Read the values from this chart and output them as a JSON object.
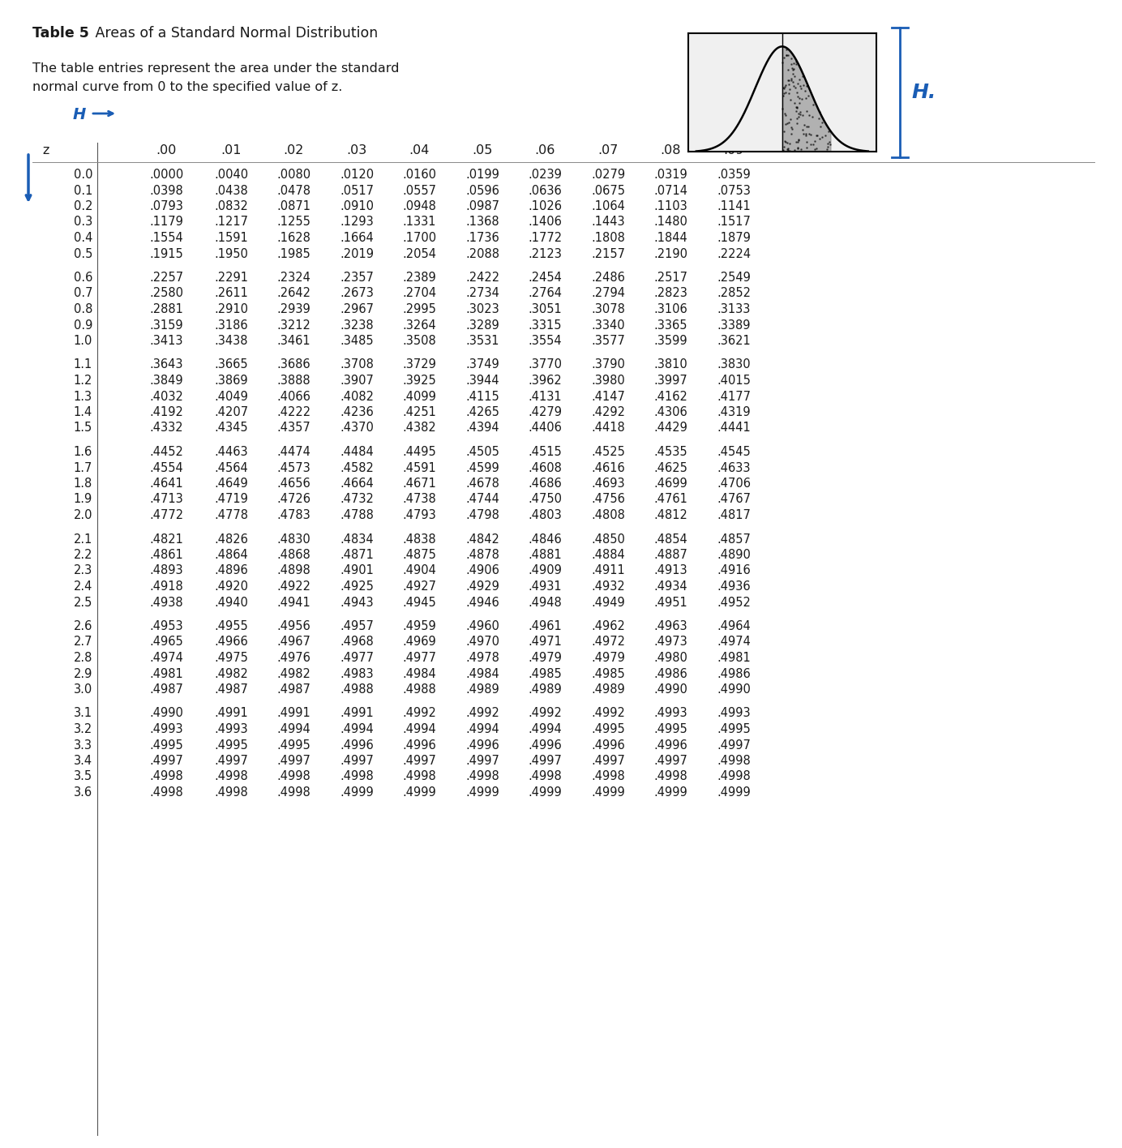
{
  "title_bold": "Table 5",
  "title_normal": " Areas of a Standard Normal Distribution",
  "description_line1": "The table entries represent the area under the standard",
  "description_line2": "normal curve from 0 to the specified value of z.",
  "col_headers": [
    ".00",
    ".01",
    ".02",
    ".03",
    ".04",
    ".05",
    ".06",
    ".07",
    ".08",
    ".09"
  ],
  "z_label": "z",
  "table_data": [
    [
      "0.0",
      ".0000",
      ".0040",
      ".0080",
      ".0120",
      ".0160",
      ".0199",
      ".0239",
      ".0279",
      ".0319",
      ".0359"
    ],
    [
      "0.1",
      ".0398",
      ".0438",
      ".0478",
      ".0517",
      ".0557",
      ".0596",
      ".0636",
      ".0675",
      ".0714",
      ".0753"
    ],
    [
      "0.2",
      ".0793",
      ".0832",
      ".0871",
      ".0910",
      ".0948",
      ".0987",
      ".1026",
      ".1064",
      ".1103",
      ".1141"
    ],
    [
      "0.3",
      ".1179",
      ".1217",
      ".1255",
      ".1293",
      ".1331",
      ".1368",
      ".1406",
      ".1443",
      ".1480",
      ".1517"
    ],
    [
      "0.4",
      ".1554",
      ".1591",
      ".1628",
      ".1664",
      ".1700",
      ".1736",
      ".1772",
      ".1808",
      ".1844",
      ".1879"
    ],
    [
      "0.5",
      ".1915",
      ".1950",
      ".1985",
      ".2019",
      ".2054",
      ".2088",
      ".2123",
      ".2157",
      ".2190",
      ".2224"
    ],
    [
      "0.6",
      ".2257",
      ".2291",
      ".2324",
      ".2357",
      ".2389",
      ".2422",
      ".2454",
      ".2486",
      ".2517",
      ".2549"
    ],
    [
      "0.7",
      ".2580",
      ".2611",
      ".2642",
      ".2673",
      ".2704",
      ".2734",
      ".2764",
      ".2794",
      ".2823",
      ".2852"
    ],
    [
      "0.8",
      ".2881",
      ".2910",
      ".2939",
      ".2967",
      ".2995",
      ".3023",
      ".3051",
      ".3078",
      ".3106",
      ".3133"
    ],
    [
      "0.9",
      ".3159",
      ".3186",
      ".3212",
      ".3238",
      ".3264",
      ".3289",
      ".3315",
      ".3340",
      ".3365",
      ".3389"
    ],
    [
      "1.0",
      ".3413",
      ".3438",
      ".3461",
      ".3485",
      ".3508",
      ".3531",
      ".3554",
      ".3577",
      ".3599",
      ".3621"
    ],
    [
      "1.1",
      ".3643",
      ".3665",
      ".3686",
      ".3708",
      ".3729",
      ".3749",
      ".3770",
      ".3790",
      ".3810",
      ".3830"
    ],
    [
      "1.2",
      ".3849",
      ".3869",
      ".3888",
      ".3907",
      ".3925",
      ".3944",
      ".3962",
      ".3980",
      ".3997",
      ".4015"
    ],
    [
      "1.3",
      ".4032",
      ".4049",
      ".4066",
      ".4082",
      ".4099",
      ".4115",
      ".4131",
      ".4147",
      ".4162",
      ".4177"
    ],
    [
      "1.4",
      ".4192",
      ".4207",
      ".4222",
      ".4236",
      ".4251",
      ".4265",
      ".4279",
      ".4292",
      ".4306",
      ".4319"
    ],
    [
      "1.5",
      ".4332",
      ".4345",
      ".4357",
      ".4370",
      ".4382",
      ".4394",
      ".4406",
      ".4418",
      ".4429",
      ".4441"
    ],
    [
      "1.6",
      ".4452",
      ".4463",
      ".4474",
      ".4484",
      ".4495",
      ".4505",
      ".4515",
      ".4525",
      ".4535",
      ".4545"
    ],
    [
      "1.7",
      ".4554",
      ".4564",
      ".4573",
      ".4582",
      ".4591",
      ".4599",
      ".4608",
      ".4616",
      ".4625",
      ".4633"
    ],
    [
      "1.8",
      ".4641",
      ".4649",
      ".4656",
      ".4664",
      ".4671",
      ".4678",
      ".4686",
      ".4693",
      ".4699",
      ".4706"
    ],
    [
      "1.9",
      ".4713",
      ".4719",
      ".4726",
      ".4732",
      ".4738",
      ".4744",
      ".4750",
      ".4756",
      ".4761",
      ".4767"
    ],
    [
      "2.0",
      ".4772",
      ".4778",
      ".4783",
      ".4788",
      ".4793",
      ".4798",
      ".4803",
      ".4808",
      ".4812",
      ".4817"
    ],
    [
      "2.1",
      ".4821",
      ".4826",
      ".4830",
      ".4834",
      ".4838",
      ".4842",
      ".4846",
      ".4850",
      ".4854",
      ".4857"
    ],
    [
      "2.2",
      ".4861",
      ".4864",
      ".4868",
      ".4871",
      ".4875",
      ".4878",
      ".4881",
      ".4884",
      ".4887",
      ".4890"
    ],
    [
      "2.3",
      ".4893",
      ".4896",
      ".4898",
      ".4901",
      ".4904",
      ".4906",
      ".4909",
      ".4911",
      ".4913",
      ".4916"
    ],
    [
      "2.4",
      ".4918",
      ".4920",
      ".4922",
      ".4925",
      ".4927",
      ".4929",
      ".4931",
      ".4932",
      ".4934",
      ".4936"
    ],
    [
      "2.5",
      ".4938",
      ".4940",
      ".4941",
      ".4943",
      ".4945",
      ".4946",
      ".4948",
      ".4949",
      ".4951",
      ".4952"
    ],
    [
      "2.6",
      ".4953",
      ".4955",
      ".4956",
      ".4957",
      ".4959",
      ".4960",
      ".4961",
      ".4962",
      ".4963",
      ".4964"
    ],
    [
      "2.7",
      ".4965",
      ".4966",
      ".4967",
      ".4968",
      ".4969",
      ".4970",
      ".4971",
      ".4972",
      ".4973",
      ".4974"
    ],
    [
      "2.8",
      ".4974",
      ".4975",
      ".4976",
      ".4977",
      ".4977",
      ".4978",
      ".4979",
      ".4979",
      ".4980",
      ".4981"
    ],
    [
      "2.9",
      ".4981",
      ".4982",
      ".4982",
      ".4983",
      ".4984",
      ".4984",
      ".4985",
      ".4985",
      ".4986",
      ".4986"
    ],
    [
      "3.0",
      ".4987",
      ".4987",
      ".4987",
      ".4988",
      ".4988",
      ".4989",
      ".4989",
      ".4989",
      ".4990",
      ".4990"
    ],
    [
      "3.1",
      ".4990",
      ".4991",
      ".4991",
      ".4991",
      ".4992",
      ".4992",
      ".4992",
      ".4992",
      ".4993",
      ".4993"
    ],
    [
      "3.2",
      ".4993",
      ".4993",
      ".4994",
      ".4994",
      ".4994",
      ".4994",
      ".4994",
      ".4995",
      ".4995",
      ".4995"
    ],
    [
      "3.3",
      ".4995",
      ".4995",
      ".4995",
      ".4996",
      ".4996",
      ".4996",
      ".4996",
      ".4996",
      ".4996",
      ".4997"
    ],
    [
      "3.4",
      ".4997",
      ".4997",
      ".4997",
      ".4997",
      ".4997",
      ".4997",
      ".4997",
      ".4997",
      ".4997",
      ".4998"
    ],
    [
      "3.5",
      ".4998",
      ".4998",
      ".4998",
      ".4998",
      ".4998",
      ".4998",
      ".4998",
      ".4998",
      ".4998",
      ".4998"
    ],
    [
      "3.6",
      ".4998",
      ".4998",
      ".4998",
      ".4999",
      ".4999",
      ".4999",
      ".4999",
      ".4999",
      ".4999",
      ".4999"
    ]
  ],
  "group_sizes": [
    6,
    5,
    5,
    5,
    5,
    5,
    6
  ],
  "background_color": "#ffffff",
  "text_color": "#1a1a1a",
  "blue_color": "#1a5db5",
  "arrow_color": "#1a5db5",
  "font_size": 10.5,
  "header_font_size": 11.5,
  "title_fontsize": 12.5,
  "desc_fontsize": 11.5
}
